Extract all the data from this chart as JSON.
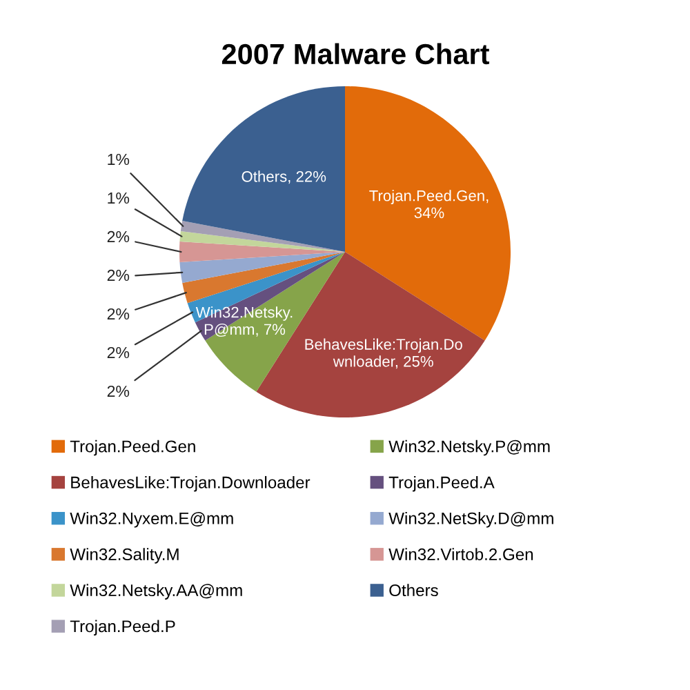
{
  "chart_data": {
    "type": "pie",
    "title": "2007 Malware Chart",
    "categories": [
      "Trojan.Peed.Gen",
      "BehavesLike:Trojan.Downloader",
      "Win32.Netsky.P@mm",
      "Trojan.Peed.A",
      "Win32.Nyxem.E@mm",
      "Win32.Sality.M",
      "Win32.NetSky.D@mm",
      "Win32.Virtob.2.Gen",
      "Win32.Netsky.AA@mm",
      "Trojan.Peed.P",
      "Others"
    ],
    "values": [
      34,
      25,
      7,
      2,
      2,
      2,
      2,
      2,
      1,
      1,
      22
    ],
    "colors": [
      "#e26b0a",
      "#a5433f",
      "#86a44a",
      "#65507f",
      "#3b93c9",
      "#d9782f",
      "#95a9d0",
      "#d69694",
      "#c3d69b",
      "#a49fb4",
      "#3b6090"
    ],
    "value_labels": [
      "Trojan.Peed.Gen, 34%",
      "BehavesLike:Trojan.Downloader, 25%",
      "Win32.Netsky.P@mm, 7%",
      "2%",
      "2%",
      "2%",
      "2%",
      "2%",
      "1%",
      "1%",
      "Others, 22%"
    ],
    "legend": "bottom"
  }
}
